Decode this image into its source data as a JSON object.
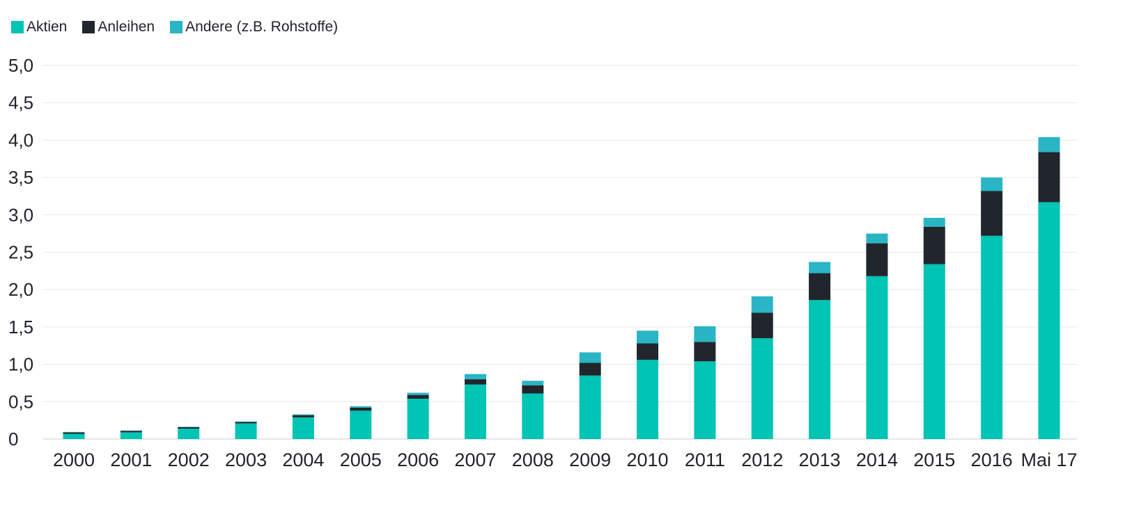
{
  "chart_data": {
    "type": "bar",
    "stacked": true,
    "categories": [
      "2000",
      "2001",
      "2002",
      "2003",
      "2004",
      "2005",
      "2006",
      "2007",
      "2008",
      "2009",
      "2010",
      "2011",
      "2012",
      "2013",
      "2014",
      "2015",
      "2016",
      "Mai 17"
    ],
    "series": [
      {
        "name": "Aktien",
        "color": "#00c4b4",
        "values": [
          0.07,
          0.09,
          0.14,
          0.21,
          0.29,
          0.38,
          0.54,
          0.73,
          0.61,
          0.85,
          1.06,
          1.04,
          1.35,
          1.86,
          2.18,
          2.34,
          2.72,
          3.17
        ]
      },
      {
        "name": "Anleihen",
        "color": "#21262d",
        "values": [
          0.02,
          0.02,
          0.02,
          0.02,
          0.03,
          0.04,
          0.05,
          0.07,
          0.11,
          0.17,
          0.22,
          0.26,
          0.34,
          0.36,
          0.44,
          0.5,
          0.6,
          0.67
        ]
      },
      {
        "name": "Andere (z.B. Rohstoffe)",
        "color": "#29b5c6",
        "values": [
          0.005,
          0.005,
          0.005,
          0.005,
          0.01,
          0.02,
          0.03,
          0.07,
          0.06,
          0.14,
          0.17,
          0.21,
          0.22,
          0.15,
          0.13,
          0.12,
          0.18,
          0.2
        ]
      }
    ],
    "yticks": [
      "0",
      "0,5",
      "1,0",
      "1,5",
      "2,0",
      "2,5",
      "3,0",
      "3,5",
      "4,0",
      "4,5",
      "5,0"
    ],
    "ylim": [
      0,
      5
    ],
    "grid": true,
    "legend_position": "top-left"
  }
}
